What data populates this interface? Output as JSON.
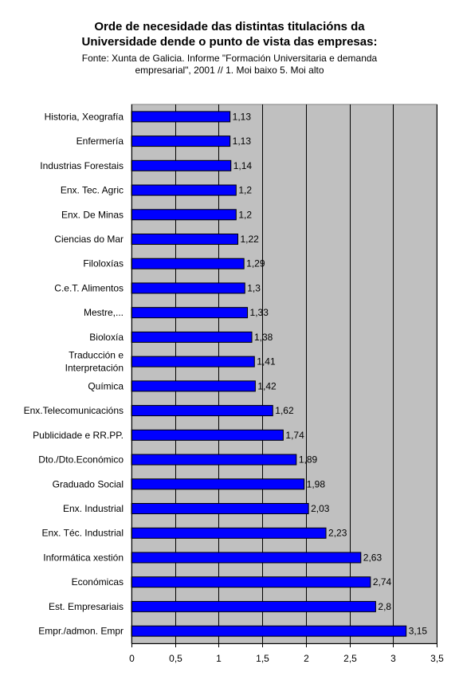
{
  "title_line1": "Orde de necesidade das distintas titulacións da",
  "title_line2": "Universidade dende o punto de vista das empresas:",
  "subtitle_line1": "Fonte: Xunta de Galicia. Informe \"Formación Universitaria e demanda",
  "subtitle_line2": "empresarial\", 2001 // 1. Moi baixo 5. Moi alto",
  "colors": {
    "bar": "#0000ff",
    "bar_stroke": "#000000",
    "plot_bg": "#c0c0c0",
    "grid": "#000000"
  },
  "chart_data": {
    "type": "bar",
    "orientation": "horizontal",
    "categories": [
      "Historia, Xeografía",
      "Enfermería",
      "Industrias Forestais",
      "Enx. Tec. Agric",
      "Enx. De Minas",
      "Ciencias do Mar",
      "Filoloxías",
      "C.e.T. Alimentos",
      "Mestre,...",
      "Bioloxía",
      "Traducción e Interpretación",
      "Química",
      "Enx.Telecomunicacións",
      "Publicidade e RR.PP.",
      "Dto./Dto.Económico",
      "Graduado Social",
      "Enx. Industrial",
      "Enx. Téc. Industrial",
      "Informática xestión",
      "Económicas",
      "Est. Empresariais",
      "Empr./admon. Empr"
    ],
    "category_lines": {
      "Traducción e Interpretación": [
        "Traducción e",
        "Interpretación"
      ]
    },
    "values": [
      1.13,
      1.13,
      1.14,
      1.2,
      1.2,
      1.22,
      1.29,
      1.3,
      1.33,
      1.38,
      1.41,
      1.42,
      1.62,
      1.74,
      1.89,
      1.98,
      2.03,
      2.23,
      2.63,
      2.74,
      2.8,
      3.15
    ],
    "value_labels": [
      "1,13",
      "1,13",
      "1,14",
      "1,2",
      "1,2",
      "1,22",
      "1,29",
      "1,3",
      "1,33",
      "1,38",
      "1,41",
      "1,42",
      "1,62",
      "1,74",
      "1,89",
      "1,98",
      "2,03",
      "2,23",
      "2,63",
      "2,74",
      "2,8",
      "3,15"
    ],
    "xlim": [
      0,
      3.5
    ],
    "xticks": [
      0,
      0.5,
      1,
      1.5,
      2,
      2.5,
      3,
      3.5
    ],
    "xtick_labels": [
      "0",
      "0,5",
      "1",
      "1,5",
      "2",
      "2,5",
      "3",
      "3,5"
    ],
    "grid": "vertical",
    "legend": "none"
  }
}
